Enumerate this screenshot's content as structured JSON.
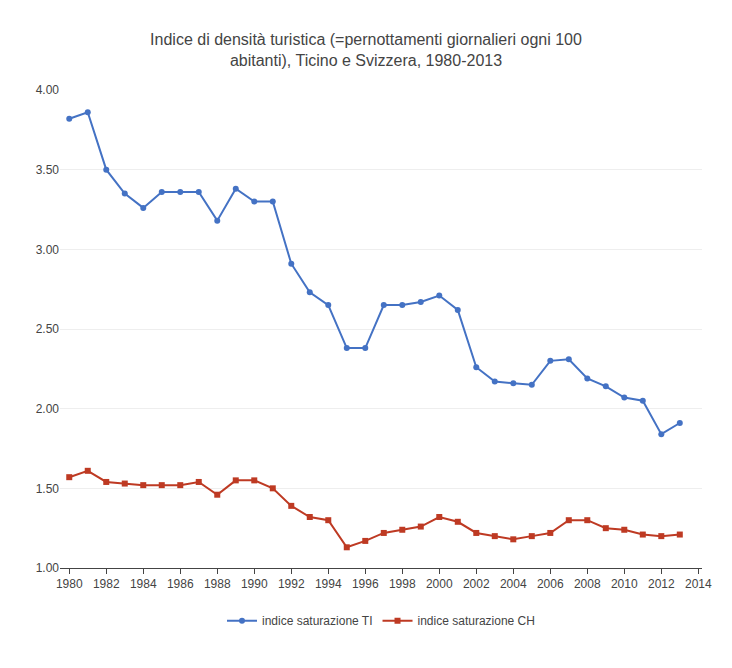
{
  "chart_data": {
    "type": "line",
    "title": "Indice di densità turistica (=pernottamenti giornalieri ogni 100\nabitanti), Ticino e Svizzera, 1980-2013",
    "x": [
      1980,
      1981,
      1982,
      1983,
      1984,
      1985,
      1986,
      1987,
      1988,
      1989,
      1990,
      1991,
      1992,
      1993,
      1994,
      1995,
      1996,
      1997,
      1998,
      1999,
      2000,
      2001,
      2002,
      2003,
      2004,
      2005,
      2006,
      2007,
      2008,
      2009,
      2010,
      2011,
      2012,
      2013
    ],
    "series": [
      {
        "name": "indice saturazione TI",
        "color": "#4472C4",
        "marker": "circle",
        "line_style": "solid",
        "values": [
          3.82,
          3.86,
          3.5,
          3.35,
          3.26,
          3.36,
          3.36,
          3.36,
          3.18,
          3.38,
          3.3,
          3.3,
          2.91,
          2.73,
          2.65,
          2.38,
          2.38,
          2.65,
          2.65,
          2.67,
          2.71,
          2.62,
          2.26,
          2.17,
          2.16,
          2.15,
          2.3,
          2.31,
          2.19,
          2.14,
          2.07,
          2.05,
          1.84,
          1.91
        ]
      },
      {
        "name": "indice saturazione CH",
        "color": "#BE3A23",
        "marker": "square",
        "line_style": "solid",
        "values": [
          1.57,
          1.61,
          1.54,
          1.53,
          1.52,
          1.52,
          1.52,
          1.54,
          1.46,
          1.55,
          1.55,
          1.5,
          1.39,
          1.32,
          1.3,
          1.13,
          1.17,
          1.22,
          1.24,
          1.26,
          1.32,
          1.29,
          1.22,
          1.2,
          1.18,
          1.2,
          1.22,
          1.3,
          1.3,
          1.25,
          1.24,
          1.21,
          1.2,
          1.21
        ]
      }
    ],
    "xlim": [
      1979.5,
      2014.2
    ],
    "xticks": [
      1980,
      1982,
      1984,
      1986,
      1988,
      1990,
      1992,
      1994,
      1996,
      1998,
      2000,
      2002,
      2004,
      2006,
      2008,
      2010,
      2012,
      2014
    ],
    "ylim": [
      1.0,
      4.0
    ],
    "yticks": [
      {
        "value": 1.0,
        "label": "1.00"
      },
      {
        "value": 1.5,
        "label": "1.50"
      },
      {
        "value": 2.0,
        "label": "2.00"
      },
      {
        "value": 2.5,
        "label": "2.50"
      },
      {
        "value": 3.0,
        "label": "3.00"
      },
      {
        "value": 3.5,
        "label": "3.50"
      },
      {
        "value": 4.0,
        "label": "4.00"
      }
    ],
    "grid": true,
    "legend": "bottom"
  }
}
